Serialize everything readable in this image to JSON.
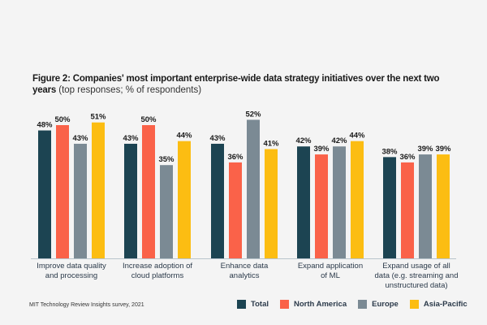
{
  "title": {
    "bold": "Figure 2: Companies' most important enterprise-wide data strategy initiatives over the next two years",
    "normal": " (top responses; % of respondents)"
  },
  "source": "MIT Technology Review Insights survey, 2021",
  "chart_data": {
    "type": "bar",
    "title": "Figure 2: Companies' most important enterprise-wide data strategy initiatives over the next two years (top responses; % of respondents)",
    "xlabel": "",
    "ylabel": "% of respondents",
    "ylim": [
      0,
      52
    ],
    "grid": false,
    "legend_position": "bottom-right",
    "categories": [
      "Improve data quality and processing",
      "Increase adoption of cloud platforms",
      "Enhance data analytics",
      "Expand application of ML",
      "Expand usage of all data (e.g. streaming and unstructured data)"
    ],
    "category_lines": [
      [
        "Improve data quality",
        "and processing"
      ],
      [
        "Increase adoption of",
        "cloud platforms"
      ],
      [
        "Enhance data",
        "analytics"
      ],
      [
        "Expand application",
        "of ML"
      ],
      [
        "Expand usage of all",
        "data (e.g. streaming and",
        "unstructured data)"
      ]
    ],
    "series": [
      {
        "name": "Total",
        "color": "#1c4452",
        "values": [
          48,
          43,
          43,
          42,
          38
        ]
      },
      {
        "name": "North America",
        "color": "#fa6249",
        "values": [
          50,
          50,
          36,
          39,
          36
        ]
      },
      {
        "name": "Europe",
        "color": "#7b8a94",
        "values": [
          43,
          35,
          52,
          42,
          39
        ]
      },
      {
        "name": "Asia-Pacific",
        "color": "#fcbd12",
        "values": [
          51,
          44,
          41,
          44,
          39
        ]
      }
    ],
    "value_suffix": "%"
  }
}
